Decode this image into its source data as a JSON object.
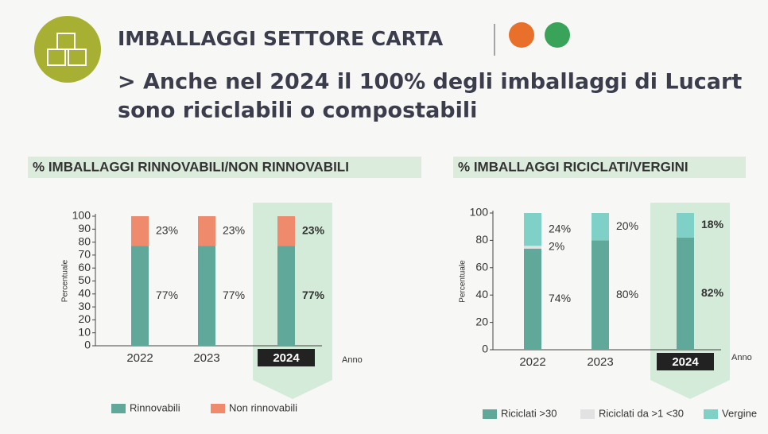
{
  "header": {
    "title": "IMBALLAGGI SETTORE CARTA",
    "subtitle": [
      "> Anche nel 2024 il 100% degli imballaggi di Lucart",
      "sono riciclabili o compostabili"
    ]
  },
  "chart_data": [
    {
      "type": "stacked_bar",
      "title": "% IMBALLAGGI RINNOVABILI/NON RINNOVABILI",
      "ylabel": "Percentuale",
      "xlabel": "Anno",
      "categories": [
        "2022",
        "2023",
        "2024"
      ],
      "series": [
        {
          "name": "Rinnovabili",
          "color": "#5fa89a",
          "values": [
            77,
            77,
            77
          ],
          "value_labels": [
            "77%",
            "77%",
            "77%"
          ]
        },
        {
          "name": "Non rinnovabili",
          "color": "#f08a6c",
          "values": [
            23,
            23,
            23
          ],
          "value_labels": [
            "23%",
            "23%",
            "23%"
          ]
        }
      ],
      "ylim": [
        0,
        100
      ],
      "yticks": [
        0,
        10,
        20,
        30,
        40,
        50,
        60,
        70,
        80,
        90,
        100
      ]
    },
    {
      "type": "stacked_bar",
      "title": "% IMBALLAGGI RICICLATI/VERGINI",
      "ylabel": "Percentuale",
      "xlabel": "Anno",
      "categories": [
        "2022",
        "2023",
        "2024"
      ],
      "series": [
        {
          "name": "Riciclati >30",
          "color": "#5fa89a",
          "values": [
            74,
            80,
            82
          ],
          "value_labels": [
            "74%",
            "80%",
            "82%"
          ]
        },
        {
          "name": "Riciclati da >1 <30",
          "color": "#e2e2e2",
          "values": [
            2,
            null,
            null
          ],
          "value_labels": [
            "2%",
            null,
            null
          ]
        },
        {
          "name": "Vergine",
          "color": "#7fd1c8",
          "values": [
            24,
            20,
            18
          ],
          "value_labels": [
            "24%",
            "20%",
            "18%"
          ]
        }
      ],
      "ylim": [
        0,
        100
      ],
      "yticks": [
        0,
        20,
        40,
        60,
        80,
        100
      ]
    }
  ]
}
